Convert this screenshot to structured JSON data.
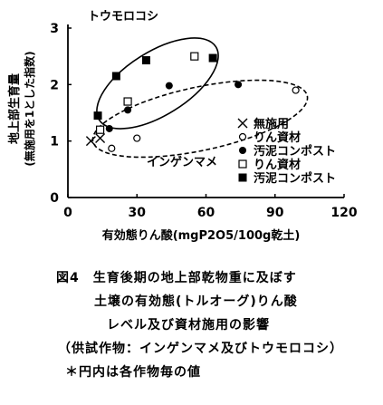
{
  "chart_data": {
    "type": "scatter",
    "xlabel": "有効態りん酸(mgP2O5/100g乾土)",
    "ylabel_line1": "地上部生育量",
    "ylabel_line2": "(無施用を1とした指数)",
    "xlim": [
      0,
      120
    ],
    "ylim": [
      0,
      3
    ],
    "xticks": [
      "0",
      "30",
      "60",
      "90",
      "120"
    ],
    "yticks": [
      "0",
      "1",
      "2",
      "3"
    ],
    "group_labels": {
      "corn": "トウモロコシ",
      "bean": "インゲンマメ"
    },
    "legend": [
      {
        "marker": "x",
        "label": "無施用"
      },
      {
        "marker": "circle-open",
        "label": "りん資材"
      },
      {
        "marker": "circle-filled",
        "label": "汚泥コンポスト"
      },
      {
        "marker": "square-open",
        "label": "りん資材"
      },
      {
        "marker": "square-filled",
        "label": "汚泥コンポスト"
      }
    ],
    "series": [
      {
        "marker": "x",
        "crop": "both",
        "points": [
          [
            10,
            1.0
          ],
          [
            14,
            1.05
          ]
        ]
      },
      {
        "marker": "circle-open",
        "crop": "bean",
        "points": [
          [
            19,
            0.87
          ],
          [
            30,
            1.05
          ],
          [
            99,
            1.9
          ]
        ]
      },
      {
        "marker": "circle-filled",
        "crop": "bean",
        "points": [
          [
            18,
            1.22
          ],
          [
            26,
            1.55
          ],
          [
            44,
            1.98
          ],
          [
            74,
            2.0
          ]
        ]
      },
      {
        "marker": "square-open",
        "crop": "corn",
        "points": [
          [
            14,
            1.2
          ],
          [
            26,
            1.7
          ],
          [
            55,
            2.5
          ]
        ]
      },
      {
        "marker": "square-filled",
        "crop": "corn",
        "points": [
          [
            13,
            1.45
          ],
          [
            21,
            2.15
          ],
          [
            34,
            2.43
          ],
          [
            63,
            2.47
          ]
        ]
      }
    ]
  },
  "caption": {
    "line1": "図4　生育後期の地上部乾物重に及ぼす",
    "line2": "土壌の有効態(トルオーグ)りん酸",
    "line3": "レベル及び資材施用の影響",
    "line4": "（供試作物：インゲンマメ及びトウモロコシ）",
    "line5": "＊円内は各作物毎の値"
  }
}
